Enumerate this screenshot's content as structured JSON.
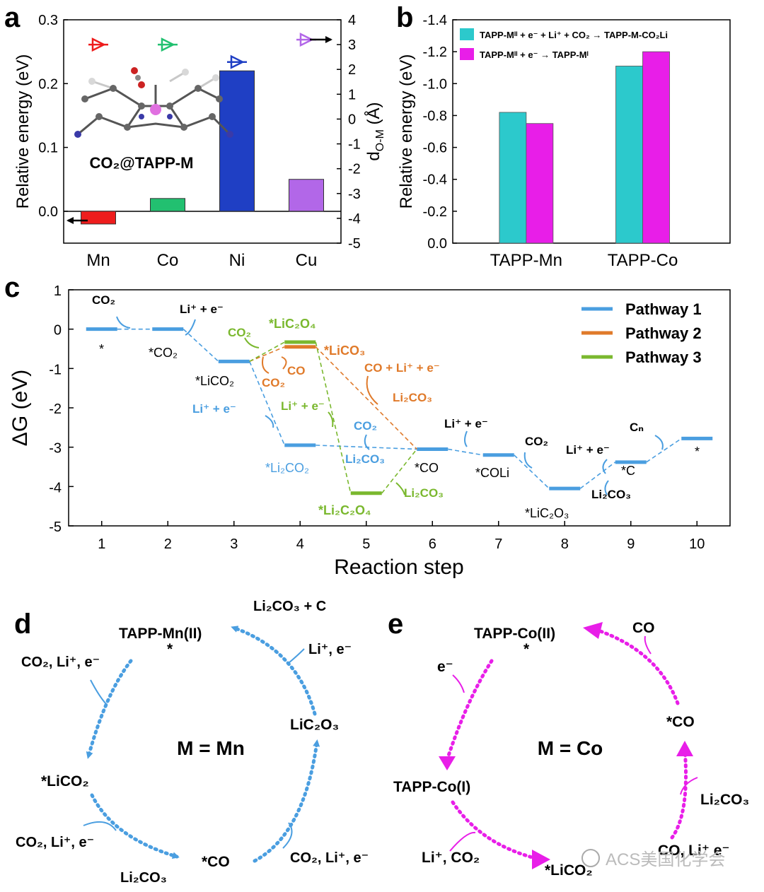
{
  "panels": {
    "a": "a",
    "b": "b",
    "c": "c",
    "d": "d",
    "e": "e"
  },
  "colors": {
    "blue": "#4a9ee0",
    "orange": "#e07a2a",
    "green": "#7ab82e",
    "magenta": "#e81ee8",
    "teal": "#2cc9cc",
    "mn_red": "#ee1c1c",
    "co_green": "#22c070",
    "ni_blue": "#1f3fc4",
    "cu_purple": "#b267e8"
  },
  "chart_data": [
    {
      "panel": "a",
      "type": "bar",
      "categories": [
        "Mn",
        "Co",
        "Ni",
        "Cu"
      ],
      "values": [
        -0.02,
        0.02,
        0.22,
        0.05
      ],
      "bar_colors": [
        "#ee1c1c",
        "#22c070",
        "#1f3fc4",
        "#b267e8"
      ],
      "ylabel": "Relative energy (eV)",
      "ylim": [
        -0.05,
        0.3
      ],
      "yticks": [
        "0.0",
        "0.1",
        "0.2",
        "0.3"
      ],
      "y2label_main": "d",
      "y2label_sub": "O-M",
      "y2label_unit": " (Å)",
      "y2lim": [
        -5,
        4
      ],
      "y2ticks": [
        "-5",
        "-4",
        "-3",
        "-2",
        "-1",
        "0",
        "1",
        "2",
        "3",
        "4"
      ],
      "secondary_values": [
        3.0,
        3.0,
        2.3,
        3.2
      ],
      "inset_label": "CO₂@TAPP-M"
    },
    {
      "panel": "b",
      "type": "bar",
      "categories": [
        "TAPP-Mn",
        "TAPP-Co"
      ],
      "series": [
        {
          "name": "TAPP-Mᴵᴵ + e⁻ + Li⁺ + CO₂ → TAPP-M-CO₂Li",
          "values": [
            -0.82,
            -1.11
          ],
          "color": "#2cc9cc"
        },
        {
          "name": "TAPP-Mᴵᴵ + e⁻ → TAPP-Mᴵ",
          "values": [
            -0.75,
            -1.2
          ],
          "color": "#e81ee8"
        }
      ],
      "ylabel": "Relative energy (eV)",
      "ylim": [
        0.0,
        -1.4
      ],
      "yticks": [
        "0.0",
        "-0.2",
        "-0.4",
        "-0.6",
        "-0.8",
        "-1.0",
        "-1.2",
        "-1.4"
      ]
    },
    {
      "panel": "c",
      "type": "line",
      "xlabel": "Reaction step",
      "ylabel": "ΔG (eV)",
      "xlim": [
        0.5,
        10.5
      ],
      "ylim": [
        -5,
        1
      ],
      "xticks": [
        "1",
        "2",
        "3",
        "4",
        "5",
        "6",
        "7",
        "8",
        "9",
        "10"
      ],
      "yticks": [
        "1",
        "0",
        "-1",
        "-2",
        "-3",
        "-4",
        "-5"
      ],
      "series": [
        {
          "name": "Pathway 1",
          "color": "#4a9ee0",
          "steps": [
            1,
            2,
            3,
            4,
            6,
            7,
            8,
            9,
            10
          ],
          "values": [
            0.0,
            0.0,
            -0.82,
            -2.95,
            -3.05,
            -3.2,
            -4.05,
            -3.38,
            -2.78
          ]
        },
        {
          "name": "Pathway 2",
          "color": "#e07a2a",
          "steps": [
            3,
            4,
            6
          ],
          "values": [
            -0.82,
            -0.45,
            -3.05
          ]
        },
        {
          "name": "Pathway 3",
          "color": "#7ab82e",
          "steps": [
            3,
            4,
            5,
            6
          ],
          "values": [
            -0.82,
            -0.33,
            -4.17,
            -3.05
          ]
        }
      ],
      "state_labels": [
        "*",
        "*CO₂",
        "*LiCO₂",
        "*Li₂CO₂",
        "*LiC₂O₄",
        "*LiCO₃",
        "*Li₂C₂O₄",
        "*CO",
        "*COLi",
        "*LiC₂O₃",
        "*C",
        "*"
      ],
      "annotations": [
        "CO₂",
        "Li⁺ + e⁻",
        "CO₂",
        "CO",
        "CO₂",
        "CO + Li⁺ + e⁻",
        "Li₂CO₃",
        "Li⁺ + e⁻",
        "Li⁺ + e⁻",
        "CO₂",
        "Li₂CO₃",
        "Li₂CO₃",
        "Li⁺ + e⁻",
        "CO₂",
        "Li⁺ + e⁻",
        "Li₂CO₃",
        "Cₙ"
      ]
    }
  ],
  "cycle_d": {
    "center": "M = Mn",
    "states": [
      "TAPP-Mn(II)",
      "*",
      "*LiCO₂",
      "*CO",
      "LiC₂O₃"
    ],
    "inputs": [
      "CO₂, Li⁺, e⁻",
      "CO₂, Li⁺, e⁻",
      "Li₂CO₃",
      "CO₂, Li⁺, e⁻",
      "Li⁺, e⁻",
      "Li₂CO₃  + C"
    ]
  },
  "cycle_e": {
    "center": "M = Co",
    "states": [
      "TAPP-Co(II)",
      "*",
      "TAPP-Co(I)",
      "*LiCO₂",
      "*CO"
    ],
    "inputs": [
      "e⁻",
      "Li⁺, CO₂",
      "CO",
      "Li₂CO₃",
      "CO, Li⁺ e⁻"
    ]
  },
  "watermark": "ACS美国化学会"
}
